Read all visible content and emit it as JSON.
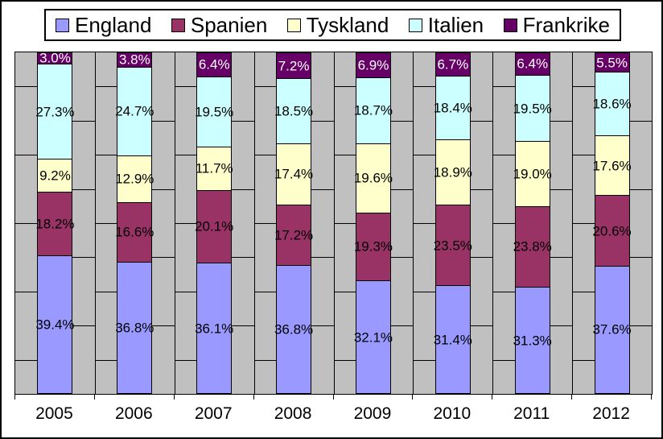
{
  "chart_data": {
    "type": "bar",
    "variant": "stacked-100",
    "title": "",
    "xlabel": "",
    "ylabel": "",
    "grid": "brick-pattern",
    "legend_position": "top",
    "plot_background": "#C0C0C0",
    "gridline_color": "#000000",
    "value_suffix": "%",
    "categories": [
      "2005",
      "2006",
      "2007",
      "2008",
      "2009",
      "2010",
      "2011",
      "2012"
    ],
    "series": [
      {
        "name": "England",
        "color": "#9999FF",
        "label_color": "#000000",
        "values": [
          39.4,
          36.8,
          36.1,
          36.8,
          32.1,
          31.4,
          31.3,
          37.6
        ]
      },
      {
        "name": "Spanien",
        "color": "#993366",
        "label_color": "#000000",
        "values": [
          18.2,
          16.6,
          20.1,
          17.2,
          19.3,
          23.5,
          23.8,
          20.6
        ]
      },
      {
        "name": "Tyskland",
        "color": "#FFFFCC",
        "label_color": "#000000",
        "values": [
          9.2,
          12.9,
          11.7,
          17.4,
          19.6,
          18.9,
          19.0,
          17.6
        ]
      },
      {
        "name": "Italien",
        "color": "#CCFFFF",
        "label_color": "#000000",
        "values": [
          27.3,
          24.7,
          19.5,
          18.5,
          18.7,
          18.4,
          19.5,
          18.6
        ]
      },
      {
        "name": "Frankrike",
        "color": "#660066",
        "label_color": "#FFFFFF",
        "values": [
          3.0,
          3.8,
          6.4,
          7.2,
          6.9,
          6.7,
          6.4,
          5.5
        ]
      }
    ]
  }
}
